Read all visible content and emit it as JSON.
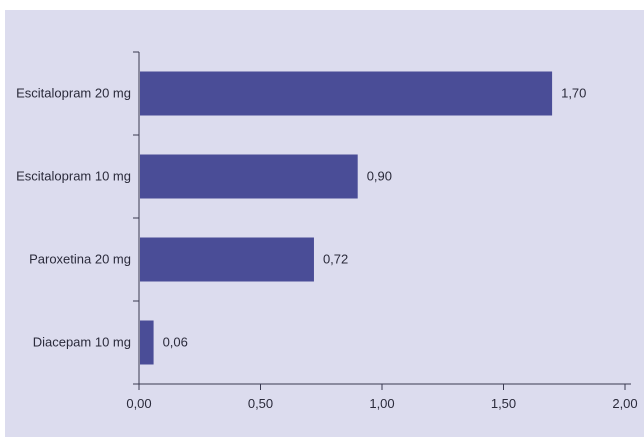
{
  "chart_data": {
    "type": "bar",
    "orientation": "horizontal",
    "categories": [
      "Escitalopram 20 mg",
      "Escitalopram 10 mg",
      "Paroxetina 20 mg",
      "Diacepam 10 mg"
    ],
    "values": [
      1.7,
      0.9,
      0.72,
      0.06
    ],
    "value_labels": [
      "1,70",
      "0,90",
      "0,72",
      "0,06"
    ],
    "xlim": [
      0,
      2
    ],
    "xticks": [
      0,
      0.5,
      1,
      1.5,
      2
    ],
    "xtick_labels": [
      "0,00",
      "0,50",
      "1,00",
      "1,50",
      "2,00"
    ],
    "grid": false,
    "colors": {
      "background": "#dcdcee",
      "bar": "#4a4d97",
      "axis": "#3a3a50"
    }
  }
}
